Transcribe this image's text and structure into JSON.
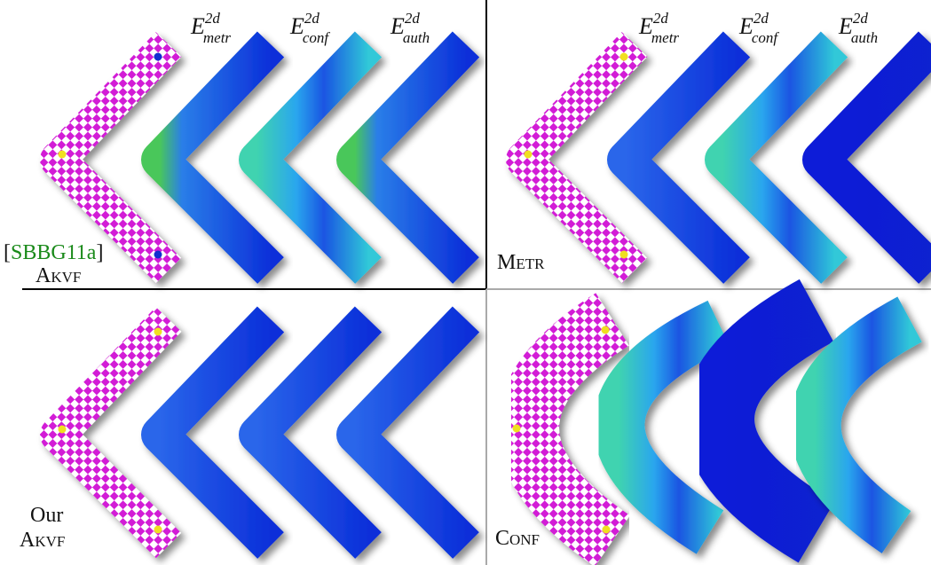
{
  "panels": [
    {
      "headers": [
        {
          "base": "E",
          "sup": "2d",
          "sub": "metr"
        },
        {
          "base": "E",
          "sup": "2d",
          "sub": "conf"
        },
        {
          "base": "E",
          "sup": "2d",
          "sub": "auth"
        }
      ],
      "citation": {
        "open": "[",
        "key": "SBBG11a",
        "close": "]"
      },
      "label": "Akvf"
    },
    {
      "headers": [
        {
          "base": "E",
          "sup": "2d",
          "sub": "metr"
        },
        {
          "base": "E",
          "sup": "2d",
          "sub": "conf"
        },
        {
          "base": "E",
          "sup": "2d",
          "sub": "auth"
        }
      ],
      "label": "Metr"
    },
    {
      "label_prefix": "Our",
      "label": "Akvf"
    },
    {
      "label": "Conf"
    }
  ]
}
